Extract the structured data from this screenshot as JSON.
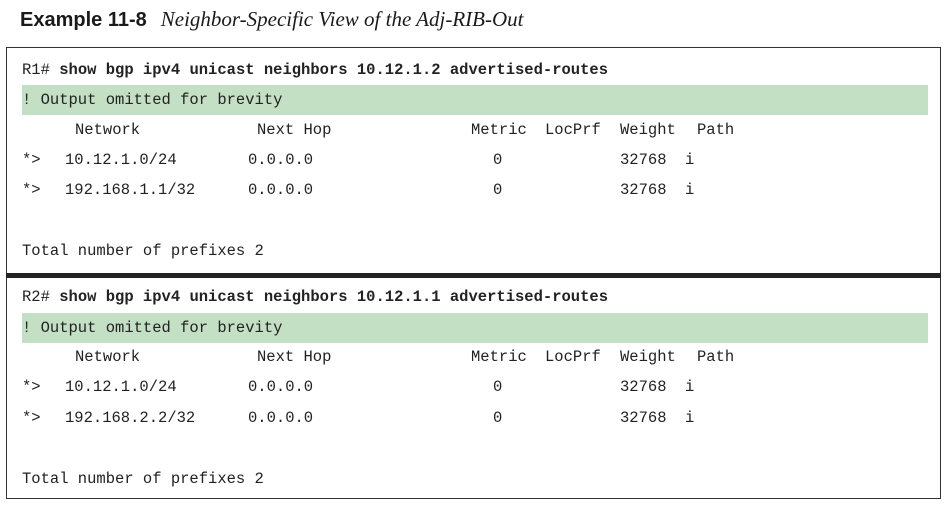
{
  "caption": {
    "label": "Example 11-8",
    "title": "Neighbor-Specific View of the Adj-RIB-Out"
  },
  "blocks": [
    {
      "prompt": "R1#",
      "command": "show bgp ipv4 unicast neighbors 10.12.1.2 advertised-routes",
      "note": "! Output omitted for brevity",
      "headers": {
        "network": "Network",
        "next_hop": "Next Hop",
        "metric": "Metric",
        "locprf": "LocPrf",
        "weight": "Weight",
        "path": "Path"
      },
      "rows": [
        {
          "status": "*>",
          "network": "10.12.1.0/24",
          "next_hop": "0.0.0.0",
          "metric": "0",
          "weight": "32768",
          "path": "i"
        },
        {
          "status": "*>",
          "network": "192.168.1.1/32",
          "next_hop": "0.0.0.0",
          "metric": "0",
          "weight": "32768",
          "path": "i"
        }
      ],
      "total": "Total number of prefixes 2"
    },
    {
      "prompt": "R2#",
      "command": "show bgp ipv4 unicast neighbors 10.12.1.1 advertised-routes",
      "note": "! Output omitted for brevity",
      "headers": {
        "network": "Network",
        "next_hop": "Next Hop",
        "metric": "Metric",
        "locprf": "LocPrf",
        "weight": "Weight",
        "path": "Path"
      },
      "rows": [
        {
          "status": "*>",
          "network": "10.12.1.0/24",
          "next_hop": "0.0.0.0",
          "metric": "0",
          "weight": "32768",
          "path": "i"
        },
        {
          "status": "*>",
          "network": "192.168.2.2/32",
          "next_hop": "0.0.0.0",
          "metric": "0",
          "weight": "32768",
          "path": "i"
        }
      ],
      "total": "Total number of prefixes 2"
    }
  ]
}
